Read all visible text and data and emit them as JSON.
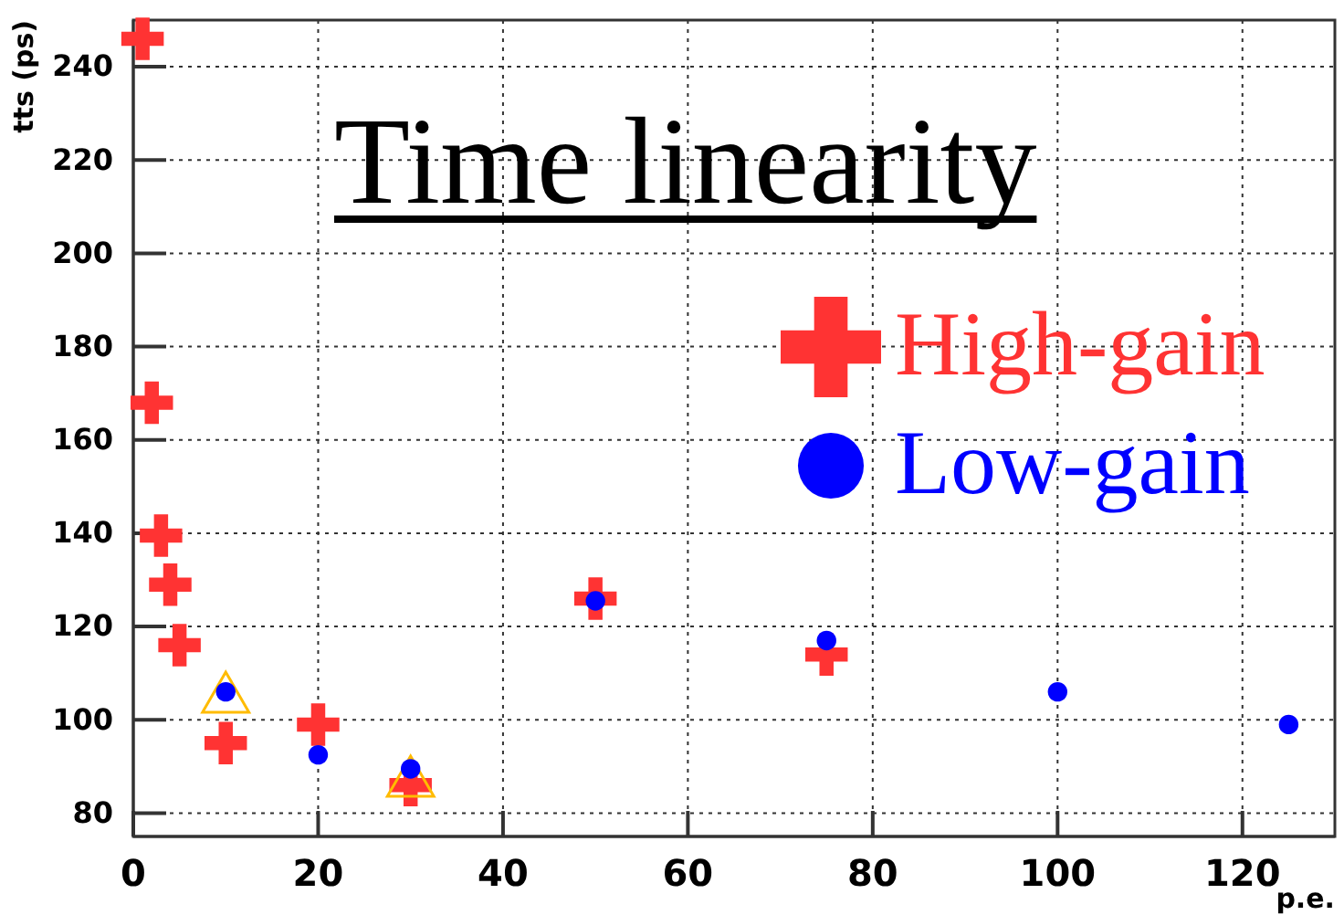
{
  "chart_data": {
    "type": "scatter",
    "title": "Time linearity",
    "xlabel": "p.e.",
    "ylabel": "tts (ps)",
    "xlim": [
      0,
      130
    ],
    "xticks": [
      0,
      20,
      40,
      60,
      80,
      100,
      120
    ],
    "ylim": [
      75,
      250
    ],
    "yticks": [
      80,
      100,
      120,
      140,
      160,
      180,
      200,
      220,
      240
    ],
    "grid": true,
    "legend": "top right",
    "series": [
      {
        "name": "High-gain",
        "color": "#ff3333",
        "marker": "cross",
        "x": [
          1,
          2,
          3,
          4,
          5,
          10,
          20,
          30,
          50,
          75
        ],
        "values": [
          246,
          168,
          139.5,
          129,
          116,
          95,
          99,
          86,
          126,
          114
        ]
      },
      {
        "color": "#ffbb00",
        "marker": "triangle",
        "x": [
          10,
          30
        ],
        "values": [
          104.5,
          86.5
        ]
      },
      {
        "name": "Low-gain",
        "color": "#0000ff",
        "marker": "circle",
        "x": [
          10,
          20,
          30,
          50,
          75,
          100,
          125
        ],
        "values": [
          106,
          92.5,
          89.5,
          125.5,
          117,
          106,
          99
        ]
      }
    ]
  }
}
